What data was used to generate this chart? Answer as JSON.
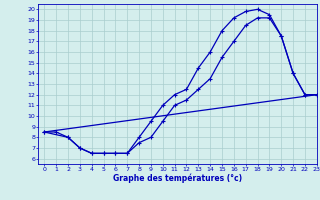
{
  "xlabel": "Graphe des températures (°c)",
  "xlim": [
    -0.5,
    23
  ],
  "ylim": [
    5.5,
    20.5
  ],
  "xticks": [
    0,
    1,
    2,
    3,
    4,
    5,
    6,
    7,
    8,
    9,
    10,
    11,
    12,
    13,
    14,
    15,
    16,
    17,
    18,
    19,
    20,
    21,
    22,
    23
  ],
  "yticks": [
    6,
    7,
    8,
    9,
    10,
    11,
    12,
    13,
    14,
    15,
    16,
    17,
    18,
    19,
    20
  ],
  "bg_color": "#d4eeed",
  "line_color": "#0000bb",
  "grid_color": "#aacece",
  "line1_x": [
    0,
    1,
    2,
    3,
    4,
    5,
    6,
    7,
    8,
    9,
    10,
    11,
    12,
    13,
    14,
    15,
    16,
    17,
    18,
    19,
    20,
    21,
    22,
    23
  ],
  "line1_y": [
    8.5,
    8.5,
    8.0,
    7.0,
    6.5,
    6.5,
    6.5,
    6.5,
    8.0,
    9.5,
    11.0,
    12.0,
    12.5,
    14.5,
    16.0,
    18.0,
    19.2,
    19.8,
    20.0,
    19.5,
    17.5,
    14.0,
    12.0,
    12.0
  ],
  "line2_x": [
    0,
    2,
    3,
    4,
    5,
    6,
    7,
    8,
    9,
    10,
    11,
    12,
    13,
    14,
    15,
    16,
    17,
    18,
    19,
    20,
    21,
    22,
    23
  ],
  "line2_y": [
    8.5,
    8.0,
    7.0,
    6.5,
    6.5,
    6.5,
    6.5,
    7.5,
    8.0,
    9.5,
    11.0,
    11.5,
    12.5,
    13.5,
    15.5,
    17.0,
    18.5,
    19.2,
    19.2,
    17.5,
    14.0,
    12.0,
    12.0
  ],
  "line3_x": [
    0,
    23
  ],
  "line3_y": [
    8.5,
    12.0
  ],
  "marker": "+"
}
